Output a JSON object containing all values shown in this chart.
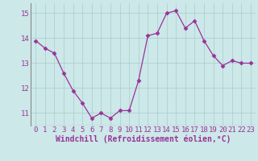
{
  "x": [
    0,
    1,
    2,
    3,
    4,
    5,
    6,
    7,
    8,
    9,
    10,
    11,
    12,
    13,
    14,
    15,
    16,
    17,
    18,
    19,
    20,
    21,
    22,
    23
  ],
  "y": [
    13.9,
    13.6,
    13.4,
    12.6,
    11.9,
    11.4,
    10.8,
    11.0,
    10.8,
    11.1,
    11.1,
    12.3,
    14.1,
    14.2,
    15.0,
    15.1,
    14.4,
    14.7,
    13.9,
    13.3,
    12.9,
    13.1,
    13.0,
    13.0
  ],
  "line_color": "#993399",
  "marker": "D",
  "marker_size": 2.5,
  "bg_color": "#cce8e8",
  "grid_color": "#aacccc",
  "xlabel": "Windchill (Refroidissement éolien,°C)",
  "xlabel_fontsize": 7,
  "tick_fontsize": 6.5,
  "ylim": [
    10.5,
    15.4
  ],
  "xlim": [
    -0.5,
    23.5
  ],
  "yticks": [
    11,
    12,
    13,
    14,
    15
  ],
  "xticks": [
    0,
    1,
    2,
    3,
    4,
    5,
    6,
    7,
    8,
    9,
    10,
    11,
    12,
    13,
    14,
    15,
    16,
    17,
    18,
    19,
    20,
    21,
    22,
    23
  ],
  "left_border_color": "#888888"
}
